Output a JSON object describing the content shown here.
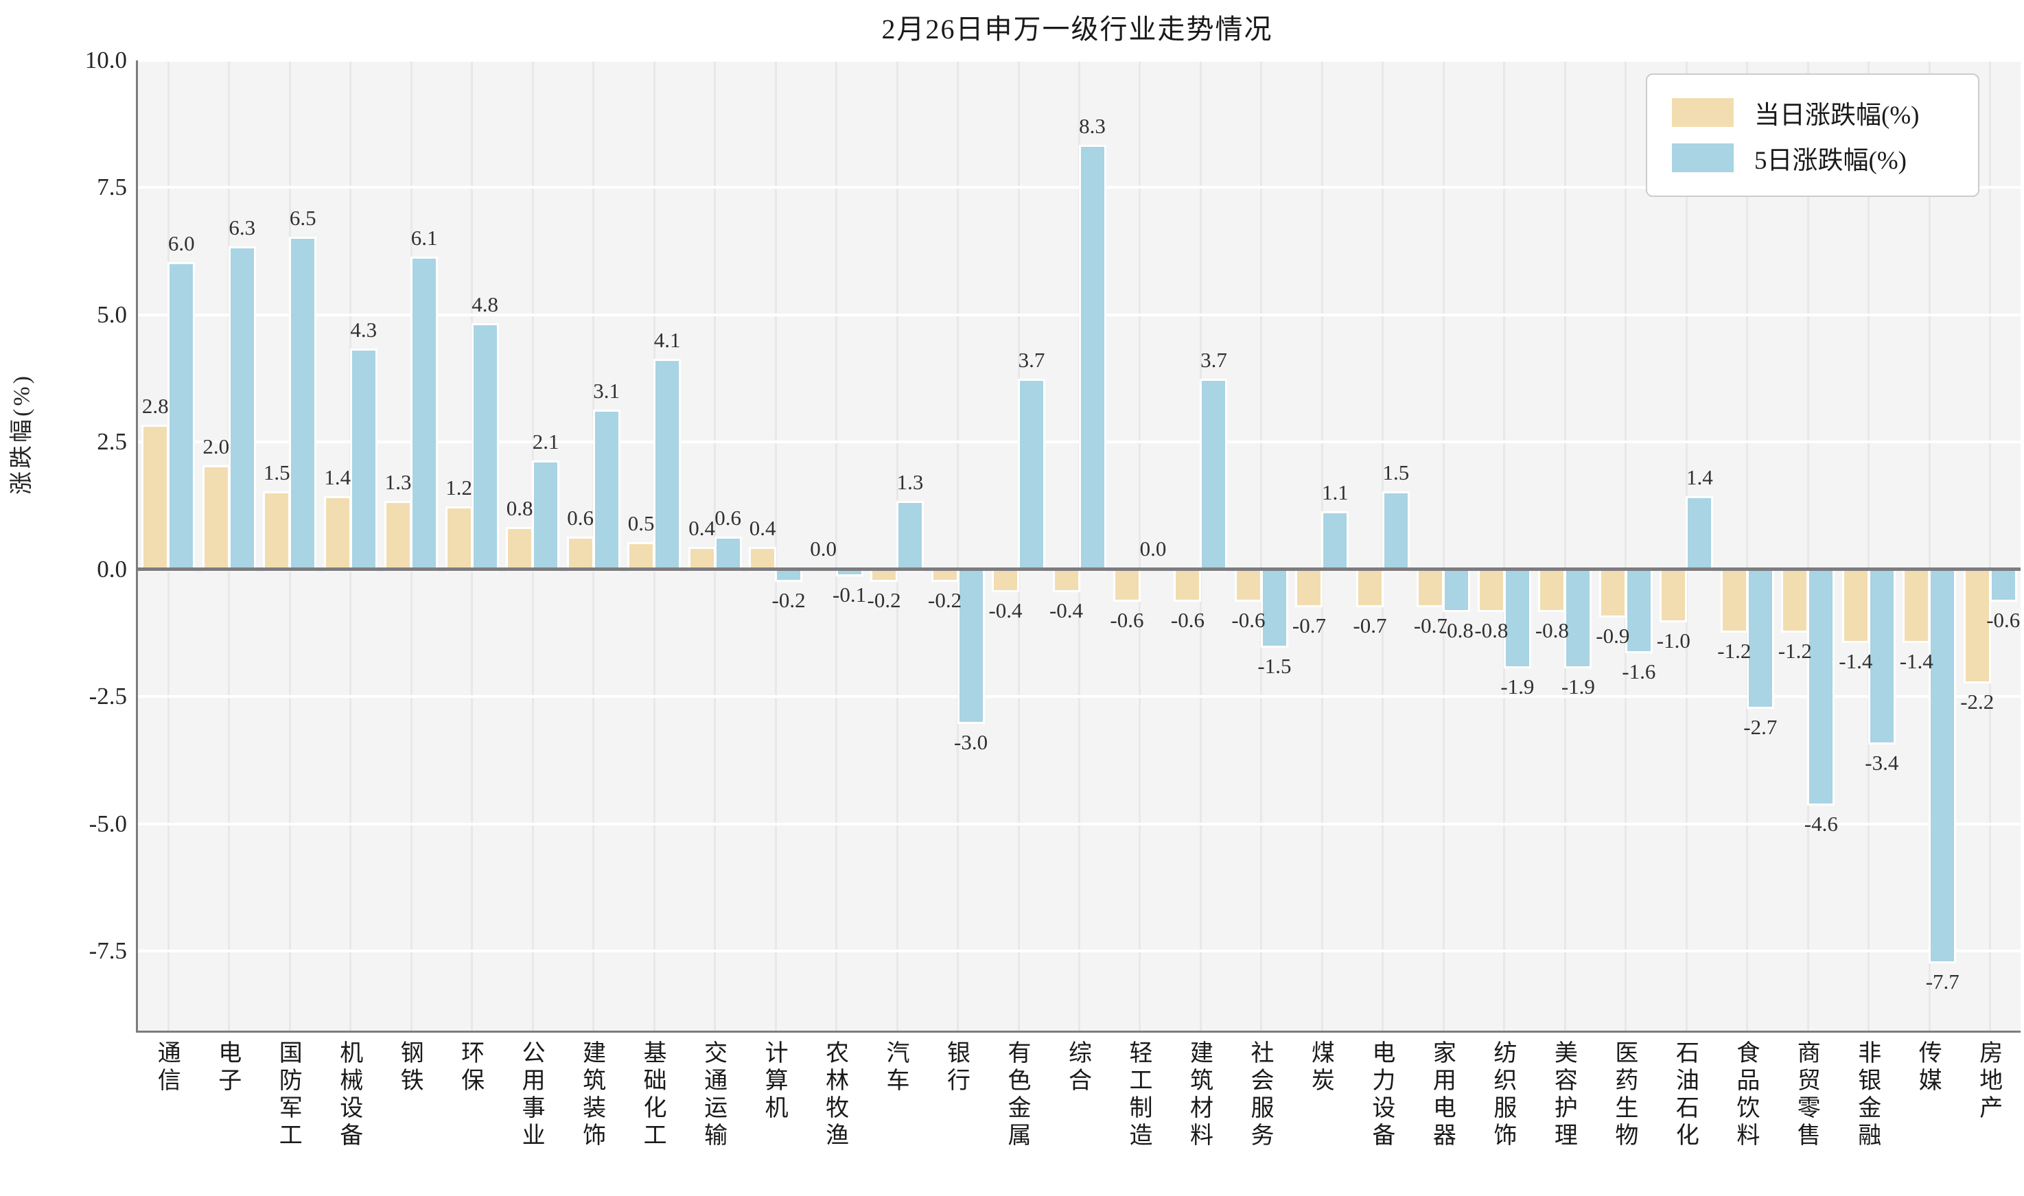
{
  "chart_data": {
    "type": "bar",
    "title": "2月26日申万一级行业走势情况",
    "xlabel": "",
    "ylabel": "涨跌幅(%)",
    "legend_position": "top-right",
    "grid": "horizontal white gridlines, faint vertical gridlines per category",
    "plot_background": "#f4f4f4",
    "zero_line_color": "#7c7c80",
    "ylim": [
      -9.06,
      10.0
    ],
    "yticks": [
      10.0,
      7.5,
      5.0,
      2.5,
      0.0,
      -2.5,
      -5.0,
      -7.5
    ],
    "categories": [
      "通信",
      "电子",
      "国防军工",
      "机械设备",
      "钢铁",
      "环保",
      "公用事业",
      "建筑装饰",
      "基础化工",
      "交通运输",
      "计算机",
      "农林牧渔",
      "汽车",
      "银行",
      "有色金属",
      "综合",
      "轻工制造",
      "建筑材料",
      "社会服务",
      "煤炭",
      "电力设备",
      "家用电器",
      "纺织服饰",
      "美容护理",
      "医药生物",
      "石油石化",
      "食品饮料",
      "商贸零售",
      "非银金融",
      "传媒",
      "房地产"
    ],
    "series": [
      {
        "name": "当日涨跌幅(%)",
        "color": "#f2ddb0",
        "values": [
          2.8,
          2.0,
          1.5,
          1.4,
          1.3,
          1.2,
          0.8,
          0.6,
          0.5,
          0.4,
          0.4,
          0.0,
          -0.2,
          -0.2,
          -0.4,
          -0.4,
          -0.6,
          -0.6,
          -0.6,
          -0.7,
          -0.7,
          -0.7,
          -0.8,
          -0.8,
          -0.9,
          -1.0,
          -1.2,
          -1.2,
          -1.4,
          -1.4,
          -2.2
        ]
      },
      {
        "name": "5日涨跌幅(%)",
        "color": "#a8d4e4",
        "values": [
          6.0,
          6.3,
          6.5,
          4.3,
          6.1,
          4.8,
          2.1,
          3.1,
          4.1,
          0.6,
          -0.2,
          -0.1,
          1.3,
          -3.0,
          3.7,
          8.3,
          0.0,
          3.7,
          -1.5,
          1.1,
          1.5,
          -0.8,
          -1.9,
          -1.9,
          -1.6,
          1.4,
          -2.7,
          -4.6,
          -3.4,
          -7.7,
          -0.6
        ]
      }
    ]
  }
}
